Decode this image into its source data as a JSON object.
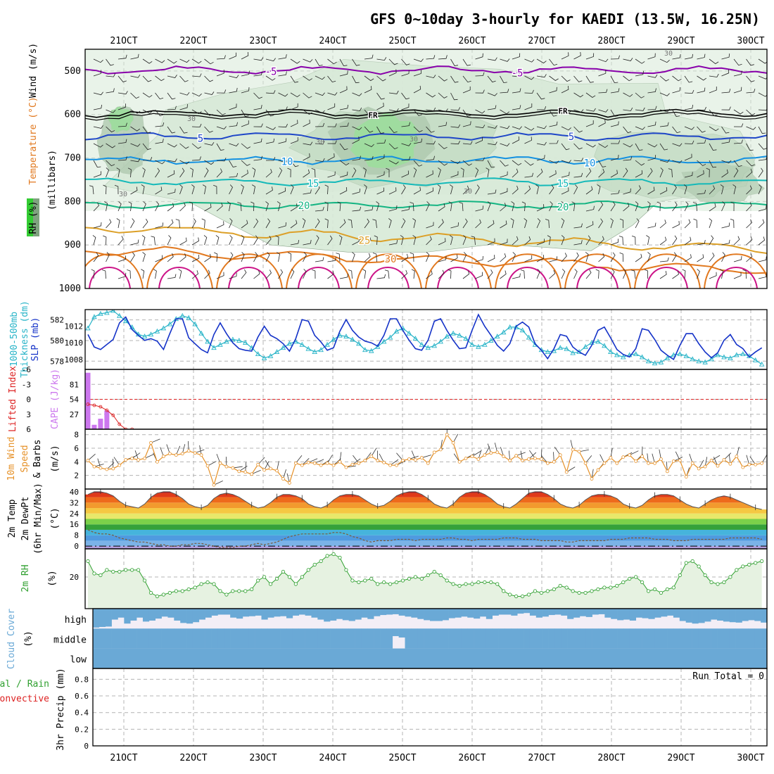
{
  "title": "GFS 0~10day 3-hourly for KAEDI (13.5W, 16.25N)",
  "colors": {
    "rh_light": "#d7ead7",
    "rh_mid": "#a9c9a9",
    "rh_dark": "#7fa37f",
    "rh_green": "#5ccc5c",
    "temp_purple": "#8800aa",
    "temp_blue": "#1e46c8",
    "temp_lightblue": "#1491e1",
    "temp_cyan": "#14b9b9",
    "temp_teal": "#14b482",
    "temp_gold": "#dca028",
    "temp_orange": "#e1781e",
    "temp_magenta": "#cc1488",
    "freezing": "#000000",
    "thickness": "#28b4c8",
    "slp": "#1432c8",
    "cape": "#cc77ee",
    "lifted": "#dd2222",
    "wind10m": "#e69128",
    "rh2m": "#30a030",
    "cloud": "#6aa9d6",
    "cloud_clear": "#f3eef6"
  },
  "chart_data": [
    {
      "id": "upper_air",
      "type": "contour",
      "title": "GFS 0~10day 3-hourly for KAEDI (13.5W, 16.25N)",
      "x_tick_labels": [
        "21OCT",
        "22OCT",
        "23OCT",
        "24OCT",
        "25OCT",
        "26OCT",
        "27OCT",
        "28OCT",
        "29OCT",
        "30OCT"
      ],
      "y_ticks": [
        500,
        600,
        700,
        800,
        900,
        1000
      ],
      "ylim": [
        450,
        1000
      ],
      "ylabel_words": [
        "RH (%)",
        "Temperature (°C)",
        "Wind (m/s)"
      ],
      "ylabel_units": "(millibars)",
      "temperature_levels": [
        {
          "value": -5,
          "label": "-5",
          "pressure": 498
        },
        {
          "value": 0,
          "label": "FR",
          "pressure": 597
        },
        {
          "value": 5,
          "label": "5",
          "pressure": 650
        },
        {
          "value": 10,
          "label": "10",
          "pressure": 705
        },
        {
          "value": 15,
          "label": "15",
          "pressure": 755
        },
        {
          "value": 20,
          "label": "20",
          "pressure": 808
        },
        {
          "value": 25,
          "label": "25",
          "pressure": 860
        },
        {
          "value": 30,
          "label": "30",
          "pressure": 910
        }
      ],
      "rh_label": "30"
    },
    {
      "id": "thickness_slp",
      "type": "line",
      "ylabel": [
        "1000-500mb",
        "Thickness (dm)",
        "SLP (mb)"
      ],
      "left_ticks": [
        578,
        580,
        582
      ],
      "right_ticks": [
        1008,
        1010,
        1012
      ],
      "thickness_ylim": [
        577.2,
        583.0
      ],
      "slp_ylim": [
        1006.8,
        1014.0
      ],
      "series": [
        {
          "name": "1000-500mb Thickness (dm)",
          "values": [
            581.2,
            582.3,
            582.6,
            582.7,
            582.9,
            582.4,
            581.9,
            581.3,
            580.6,
            580.4,
            580.6,
            580.9,
            581.2,
            581.6,
            582.1,
            582.4,
            582.2,
            581.6,
            580.7,
            579.9,
            579.3,
            579.6,
            579.9,
            580.1,
            580.0,
            579.8,
            579.3,
            578.7,
            578.3,
            578.5,
            578.9,
            579.3,
            579.7,
            579.9,
            579.6,
            579.2,
            578.9,
            579.1,
            579.6,
            580.1,
            580.5,
            580.4,
            580.1,
            579.7,
            579.1,
            579.0,
            579.4,
            579.9,
            580.3,
            580.9,
            581.2,
            580.7,
            580.2,
            579.6,
            579.3,
            579.5,
            579.9,
            580.4,
            580.7,
            580.5,
            580.2,
            579.6,
            579.4,
            579.6,
            580.0,
            580.4,
            580.8,
            581.3,
            581.3,
            581.0,
            580.3,
            579.6,
            579.1,
            578.9,
            579.0,
            579.3,
            579.2,
            578.8,
            578.9,
            579.4,
            579.8,
            579.9,
            579.5,
            578.9,
            578.6,
            578.4,
            578.6,
            578.7,
            578.4,
            578.0,
            577.8,
            577.9,
            578.3,
            578.6,
            578.7,
            578.5,
            578.2,
            578.0,
            577.9,
            578.2,
            578.6,
            578.4,
            578.3,
            578.6,
            578.7,
            578.5,
            578.1,
            577.7
          ]
        },
        {
          "name": "SLP (mb)",
          "values": [
            1011.0,
            1009.5,
            1009.2,
            1009.8,
            1010.4,
            1012.4,
            1013.1,
            1011.6,
            1010.9,
            1010.3,
            1010.5,
            1010.2,
            1009.2,
            1011.1,
            1012.9,
            1012.9,
            1010.6,
            1009.9,
            1009.2,
            1008.8,
            1011.0,
            1012.4,
            1011.1,
            1010.0,
            1009.3,
            1009.1,
            1009.0,
            1010.7,
            1012.0,
            1010.9,
            1010.5,
            1009.9,
            1009.0,
            1010.5,
            1012.8,
            1012.6,
            1010.9,
            1010.1,
            1009.1,
            1009.4,
            1011.4,
            1012.8,
            1011.5,
            1010.7,
            1010.2,
            1010.0,
            1009.6,
            1010.9,
            1012.9,
            1012.9,
            1011.5,
            1010.3,
            1009.3,
            1009.1,
            1010.3,
            1012.6,
            1012.9,
            1011.5,
            1010.3,
            1009.3,
            1009.4,
            1011.5,
            1013.4,
            1012.0,
            1010.9,
            1009.7,
            1009.0,
            1009.9,
            1012.0,
            1012.5,
            1011.9,
            1009.9,
            1009.1,
            1008.1,
            1009.3,
            1011.0,
            1010.8,
            1009.5,
            1008.9,
            1008.5,
            1009.7,
            1011.5,
            1011.9,
            1010.6,
            1009.2,
            1008.6,
            1008.3,
            1009.3,
            1011.7,
            1011.5,
            1010.4,
            1009.1,
            1008.5,
            1008.0,
            1009.7,
            1011.1,
            1011.1,
            1009.9,
            1008.9,
            1008.2,
            1008.8,
            1010.3,
            1011.0,
            1009.8,
            1009.3,
            1008.3,
            1008.9,
            1009.4
          ]
        }
      ]
    },
    {
      "id": "cape_li",
      "type": "bar",
      "ylabel": [
        "Lifted Index",
        "CAPE (J/kg)"
      ],
      "li_ticks": [
        "-6",
        "-3",
        "0",
        "3",
        "6"
      ],
      "cape_ticks": [
        27,
        54,
        81
      ],
      "cape_ylim": [
        0,
        108
      ],
      "li_ylim": [
        6,
        -6
      ],
      "x": [
        0,
        1,
        2,
        3
      ],
      "cape": [
        102,
        8,
        19,
        34
      ],
      "lifted_index": [
        1.0,
        1.2,
        1.5,
        2.2,
        3.2,
        5.0,
        6.0,
        6.0
      ]
    },
    {
      "id": "wind10m",
      "type": "line",
      "ylabel": [
        "10m Wind",
        "Speed",
        "& Barbs",
        "(m/s)"
      ],
      "y_ticks": [
        2,
        4,
        6,
        8
      ],
      "ylim": [
        0,
        8.8
      ],
      "series": [
        {
          "name": "10m Wind Speed (m/s)",
          "values": [
            4.2,
            3.3,
            3.1,
            2.9,
            3.0,
            3.5,
            4.3,
            4.5,
            4.3,
            4.5,
            6.8,
            4.0,
            4.8,
            5.2,
            5.0,
            5.2,
            5.6,
            5.3,
            5.0,
            3.4,
            0.6,
            3.8,
            3.3,
            3.1,
            2.6,
            2.5,
            2.2,
            3.6,
            2.8,
            3.0,
            2.7,
            1.5,
            0.9,
            3.8,
            3.5,
            3.9,
            3.8,
            3.5,
            3.8,
            3.5,
            4.0,
            3.2,
            3.6,
            3.8,
            4.2,
            4.8,
            4.2,
            3.9,
            3.5,
            3.5,
            4.2,
            4.4,
            4.3,
            4.6,
            3.8,
            5.4,
            5.8,
            8.0,
            6.8,
            4.0,
            4.5,
            4.8,
            4.4,
            5.0,
            5.3,
            5.4,
            4.8,
            4.2,
            4.9,
            4.2,
            4.4,
            4.5,
            4.4,
            3.8,
            4.0,
            5.0,
            2.5,
            5.8,
            5.5,
            3.8,
            1.5,
            2.8,
            3.8,
            4.6,
            3.8,
            4.7,
            5.0,
            4.1,
            4.8,
            3.8,
            3.8,
            4.4,
            2.6,
            4.1,
            4.2,
            1.8,
            3.8,
            3.0,
            3.3,
            4.2,
            3.4,
            4.3,
            3.7,
            4.8,
            3.2,
            3.6,
            3.6,
            3.8
          ]
        }
      ]
    },
    {
      "id": "temp2m",
      "type": "area",
      "ylabel": [
        "2m Temp",
        "2m DewPt",
        "(6hr Min/Max)",
        "(°C)"
      ],
      "y_ticks": [
        0,
        8,
        16,
        24,
        32,
        40
      ],
      "ylim": [
        -2,
        42
      ],
      "series": [
        {
          "name": "2m Temp (°C)",
          "values": [
            38,
            40,
            40,
            39,
            37,
            33,
            30,
            29,
            28,
            31,
            36,
            39,
            40,
            40,
            38,
            35,
            31,
            29,
            28,
            30,
            35,
            38,
            39,
            38,
            36,
            33,
            30,
            28,
            29,
            32,
            36,
            38,
            38,
            37,
            35,
            31,
            29,
            28,
            30,
            34,
            37,
            38,
            38,
            37,
            34,
            31,
            29,
            30,
            33,
            37,
            39,
            40,
            40,
            38,
            35,
            31,
            29,
            28,
            31,
            36,
            39,
            40,
            40,
            38,
            35,
            31,
            29,
            28,
            31,
            35,
            39,
            40,
            40,
            38,
            35,
            31,
            29,
            28,
            30,
            34,
            37,
            38,
            38,
            37,
            35,
            31,
            29,
            28,
            30,
            34,
            37,
            38,
            38,
            37,
            34,
            31,
            29,
            28,
            31,
            34,
            36,
            37,
            36,
            34,
            32,
            30,
            28,
            27
          ]
        },
        {
          "name": "2m DewPt (°C)",
          "values": [
            12,
            10,
            9,
            9,
            8,
            6,
            5,
            4,
            3,
            3,
            2,
            1,
            1,
            0,
            0,
            1,
            1,
            2,
            2,
            1,
            0,
            -1,
            -1,
            -1,
            0,
            0,
            1,
            2,
            1,
            2,
            3,
            5,
            7,
            8,
            9,
            9,
            9,
            9,
            9,
            10,
            10,
            9,
            7,
            6,
            4,
            3,
            4,
            4,
            4,
            5,
            5,
            5,
            4,
            5,
            5,
            5,
            5,
            6,
            6,
            5,
            5,
            4,
            5,
            5,
            5,
            5,
            6,
            6,
            6,
            5,
            5,
            5,
            4,
            4,
            4,
            4,
            3,
            3,
            4,
            4,
            4,
            4,
            4,
            5,
            5,
            5,
            6,
            6,
            6,
            6,
            5,
            5,
            5,
            4,
            4,
            4,
            5,
            5,
            5,
            5,
            5,
            5,
            6,
            6,
            6,
            6,
            6,
            5
          ]
        }
      ]
    },
    {
      "id": "rh2m",
      "type": "area",
      "ylabel": [
        "2m RH",
        "(%)"
      ],
      "y_ticks": [
        20
      ],
      "ylim": [
        2,
        36
      ],
      "series": [
        {
          "name": "2m RH (%)",
          "values": [
            29,
            22,
            21,
            24,
            23,
            23,
            24,
            24,
            24,
            18,
            11,
            9,
            10,
            11,
            12,
            12,
            13,
            14,
            16,
            17,
            16,
            12,
            10,
            12,
            12,
            12,
            13,
            18,
            20,
            16,
            19,
            23,
            20,
            16,
            20,
            24,
            27,
            29,
            32,
            33,
            31,
            24,
            18,
            17,
            18,
            19,
            16,
            17,
            16,
            17,
            18,
            19,
            20,
            19,
            21,
            23,
            21,
            18,
            16,
            15,
            16,
            16,
            17,
            17,
            17,
            16,
            12,
            10,
            9,
            9,
            10,
            12,
            11,
            12,
            13,
            15,
            14,
            12,
            11,
            11,
            12,
            13,
            14,
            14,
            15,
            17,
            19,
            20,
            17,
            12,
            13,
            11,
            13,
            14,
            21,
            28,
            29,
            26,
            21,
            17,
            16,
            17,
            20,
            24,
            26,
            27,
            28,
            29
          ]
        }
      ]
    },
    {
      "id": "cloud_cover",
      "type": "heatmap",
      "ylabel": [
        "Cloud Cover",
        "(%)"
      ],
      "levels": [
        "high",
        "middle",
        "low"
      ],
      "high": [
        95,
        92,
        90,
        55,
        45,
        75,
        60,
        45,
        65,
        60,
        50,
        40,
        45,
        60,
        72,
        75,
        68,
        55,
        45,
        35,
        30,
        30,
        45,
        50,
        40,
        38,
        35,
        55,
        45,
        40,
        38,
        48,
        35,
        30,
        35,
        45,
        55,
        65,
        60,
        52,
        58,
        62,
        55,
        45,
        52,
        38,
        32,
        30,
        28,
        35,
        40,
        45,
        52,
        58,
        62,
        62,
        58,
        48,
        45,
        40,
        45,
        50,
        40,
        52,
        35,
        30,
        30,
        35,
        25,
        22,
        35,
        45,
        40,
        32,
        30,
        35,
        52,
        45,
        38,
        42,
        30,
        28,
        45,
        52,
        58,
        55,
        60,
        45,
        48,
        52,
        45,
        40,
        35,
        45,
        62,
        70,
        75,
        72,
        65,
        55,
        60,
        65,
        68,
        70,
        62,
        58,
        62,
        70
      ],
      "middle": [
        100,
        100,
        100,
        100,
        100,
        100,
        100,
        100,
        100,
        100,
        100,
        100,
        100,
        100,
        100,
        100,
        100,
        100,
        100,
        100,
        100,
        100,
        100,
        100,
        100,
        100,
        100,
        100,
        100,
        100,
        100,
        100,
        100,
        100,
        100,
        100,
        100,
        100,
        100,
        100,
        100,
        100,
        100,
        100,
        100,
        100,
        100,
        100,
        38,
        45,
        100,
        100,
        100,
        100,
        100,
        100,
        100,
        100,
        100,
        100,
        100,
        100,
        100,
        100,
        100,
        100,
        100,
        100,
        100,
        100,
        100,
        100,
        100,
        100,
        100,
        100,
        100,
        100,
        100,
        100,
        100,
        100,
        100,
        100,
        100,
        100,
        100,
        100,
        100,
        100,
        100,
        100,
        100,
        100,
        100,
        100,
        100,
        100,
        100,
        100,
        100,
        100,
        100,
        100,
        100,
        100,
        100,
        100
      ]
    },
    {
      "id": "precip",
      "type": "bar",
      "ylabel": [
        "Total / Rain",
        "Convective",
        "3hr Precip (mm)"
      ],
      "y_ticks": [
        "0",
        "0.2",
        "0.4",
        "0.6",
        "0.8"
      ],
      "ylim": [
        0,
        0.93
      ],
      "run_total": "Run Total = 0",
      "values": []
    }
  ]
}
